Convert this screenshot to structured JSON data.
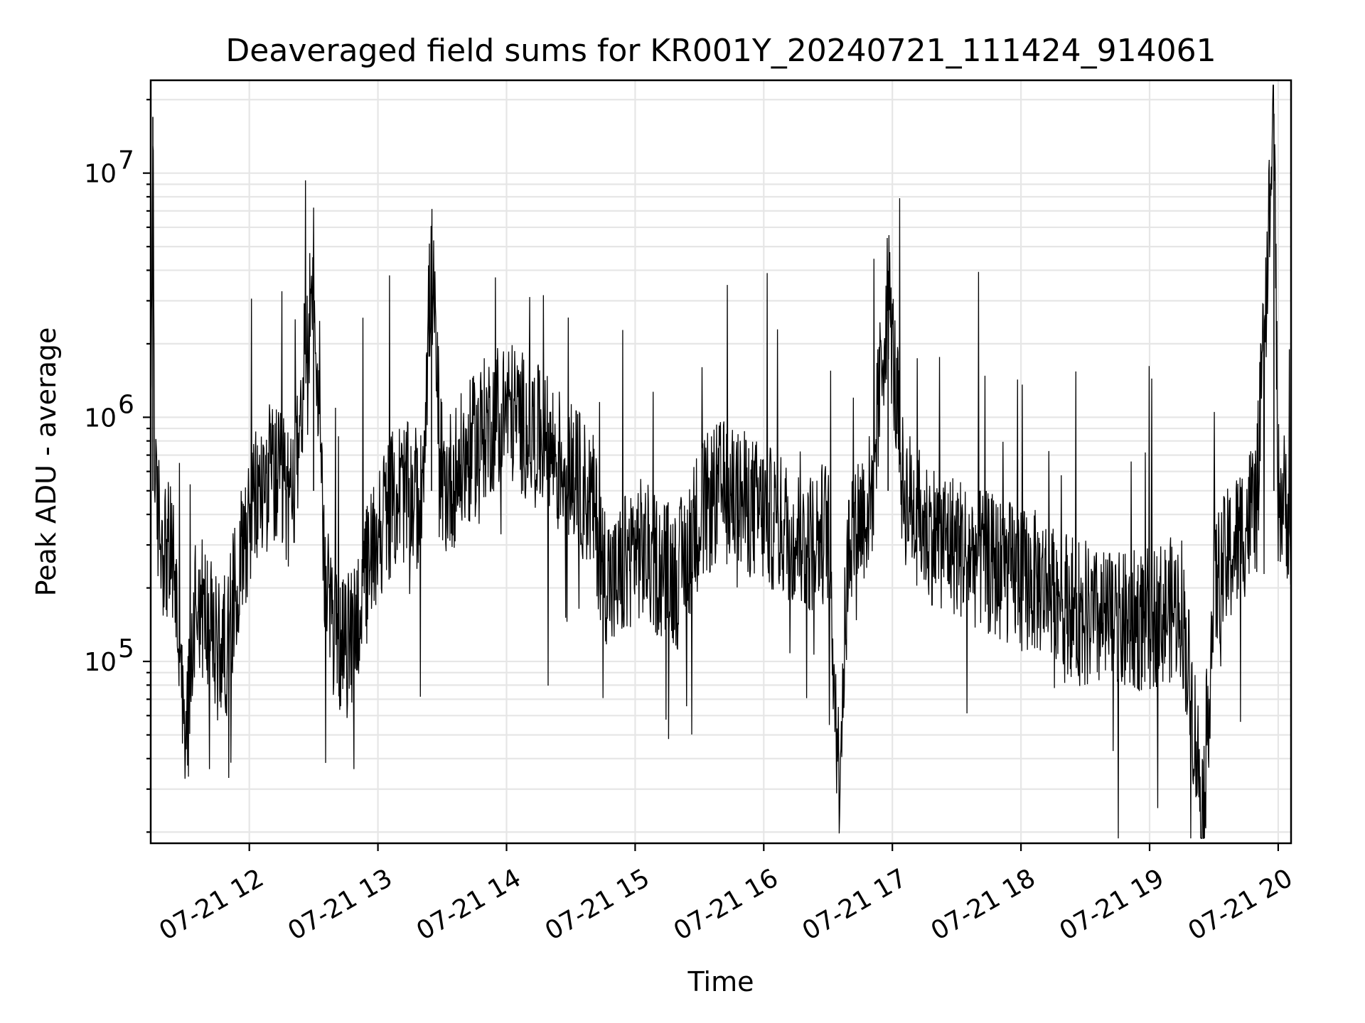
{
  "chart_data": {
    "type": "line",
    "title": "Deaveraged field sums for KR001Y_20240721_111424_914061",
    "xlabel": "Time",
    "ylabel": "Peak ADU - average",
    "yscale": "log",
    "grid": "major and minor",
    "legend": "none",
    "colors": {
      "line": "#000000",
      "grid": "#e6e6e6"
    },
    "xlim": [
      "2024-07-21 11:14",
      "2024-07-21 20:06"
    ],
    "ylim": [
      18000,
      24000000
    ],
    "x_ticks": [
      {
        "time": "2024-07-21 12:00",
        "label": "07-21 12"
      },
      {
        "time": "2024-07-21 13:00",
        "label": "07-21 13"
      },
      {
        "time": "2024-07-21 14:00",
        "label": "07-21 14"
      },
      {
        "time": "2024-07-21 15:00",
        "label": "07-21 15"
      },
      {
        "time": "2024-07-21 16:00",
        "label": "07-21 16"
      },
      {
        "time": "2024-07-21 17:00",
        "label": "07-21 17"
      },
      {
        "time": "2024-07-21 18:00",
        "label": "07-21 18"
      },
      {
        "time": "2024-07-21 19:00",
        "label": "07-21 19"
      },
      {
        "time": "2024-07-21 20:00",
        "label": "07-21 20"
      }
    ],
    "y_ticks": [
      {
        "value": 100000,
        "base": "10",
        "exp": "5"
      },
      {
        "value": 1000000,
        "base": "10",
        "exp": "6"
      },
      {
        "value": 10000000,
        "base": "10",
        "exp": "7"
      }
    ],
    "series": [
      {
        "points": [
          [
            "2024-07-21 11:14",
            650000
          ],
          [
            "2024-07-21 11:15",
            17000000
          ],
          [
            "2024-07-21 11:16",
            450000
          ],
          [
            "2024-07-21 11:20",
            300000
          ],
          [
            "2024-07-21 11:25",
            250000
          ],
          [
            "2024-07-21 11:30",
            40000
          ],
          [
            "2024-07-21 11:35",
            200000
          ],
          [
            "2024-07-21 11:40",
            150000
          ],
          [
            "2024-07-21 11:45",
            110000
          ],
          [
            "2024-07-21 11:50",
            120000
          ],
          [
            "2024-07-21 11:55",
            250000
          ],
          [
            "2024-07-21 12:00",
            400000
          ],
          [
            "2024-07-21 12:10",
            600000
          ],
          [
            "2024-07-21 12:20",
            450000
          ],
          [
            "2024-07-21 12:30",
            4000000
          ],
          [
            "2024-07-21 12:35",
            200000
          ],
          [
            "2024-07-21 12:40",
            130000
          ],
          [
            "2024-07-21 12:45",
            110000
          ],
          [
            "2024-07-21 12:50",
            150000
          ],
          [
            "2024-07-21 13:00",
            350000
          ],
          [
            "2024-07-21 13:10",
            500000
          ],
          [
            "2024-07-21 13:20",
            450000
          ],
          [
            "2024-07-21 13:25",
            4300000
          ],
          [
            "2024-07-21 13:30",
            500000
          ],
          [
            "2024-07-21 13:40",
            650000
          ],
          [
            "2024-07-21 13:50",
            900000
          ],
          [
            "2024-07-21 14:00",
            1100000
          ],
          [
            "2024-07-21 14:10",
            900000
          ],
          [
            "2024-07-21 14:20",
            750000
          ],
          [
            "2024-07-21 14:30",
            600000
          ],
          [
            "2024-07-21 14:40",
            450000
          ],
          [
            "2024-07-21 14:45",
            250000
          ],
          [
            "2024-07-21 14:50",
            200000
          ],
          [
            "2024-07-21 15:00",
            300000
          ],
          [
            "2024-07-21 15:10",
            250000
          ],
          [
            "2024-07-21 15:20",
            220000
          ],
          [
            "2024-07-21 15:30",
            400000
          ],
          [
            "2024-07-21 15:40",
            500000
          ],
          [
            "2024-07-21 15:50",
            450000
          ],
          [
            "2024-07-21 16:00",
            400000
          ],
          [
            "2024-07-21 16:10",
            350000
          ],
          [
            "2024-07-21 16:20",
            300000
          ],
          [
            "2024-07-21 16:30",
            350000
          ],
          [
            "2024-07-21 16:35",
            34000
          ],
          [
            "2024-07-21 16:40",
            350000
          ],
          [
            "2024-07-21 16:50",
            450000
          ],
          [
            "2024-07-21 16:58",
            3400000
          ],
          [
            "2024-07-21 17:05",
            500000
          ],
          [
            "2024-07-21 17:15",
            350000
          ],
          [
            "2024-07-21 17:30",
            300000
          ],
          [
            "2024-07-21 17:45",
            250000
          ],
          [
            "2024-07-21 18:00",
            220000
          ],
          [
            "2024-07-21 18:15",
            200000
          ],
          [
            "2024-07-21 18:30",
            150000
          ],
          [
            "2024-07-21 18:45",
            140000
          ],
          [
            "2024-07-21 19:00",
            150000
          ],
          [
            "2024-07-21 19:15",
            170000
          ],
          [
            "2024-07-21 19:25",
            24000
          ],
          [
            "2024-07-21 19:30",
            200000
          ],
          [
            "2024-07-21 19:40",
            300000
          ],
          [
            "2024-07-21 19:50",
            450000
          ],
          [
            "2024-07-21 19:58",
            17500000
          ],
          [
            "2024-07-21 20:00",
            500000
          ],
          [
            "2024-07-21 20:06",
            400000
          ]
        ],
        "noise_amplitude_decades": 0.3
      }
    ]
  }
}
